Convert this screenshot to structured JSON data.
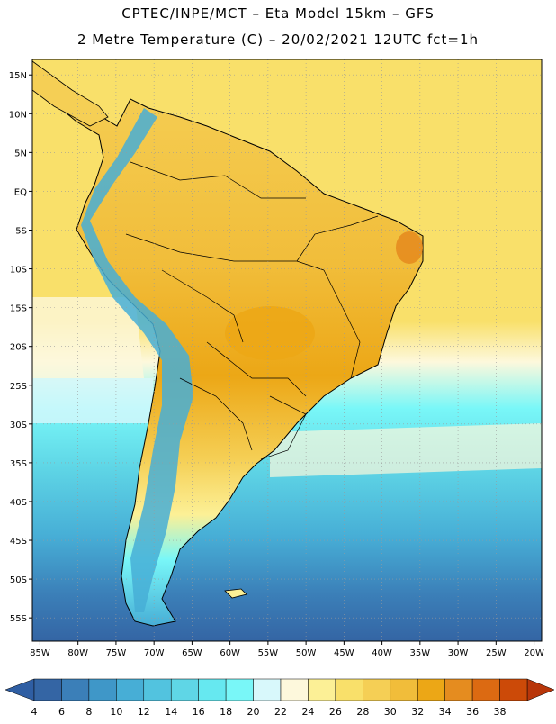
{
  "header": {
    "title_line1": "CPTEC/INPE/MCT –  Eta Model 15km – GFS",
    "title_line2": "2 Metre Temperature (C) – 20/02/2021 12UTC fct=1h"
  },
  "map": {
    "lat_labels": [
      "15N",
      "10N",
      "5N",
      "EQ",
      "5S",
      "10S",
      "15S",
      "20S",
      "25S",
      "30S",
      "35S",
      "40S",
      "45S",
      "50S",
      "55S"
    ],
    "lat_values": [
      15,
      10,
      5,
      0,
      -5,
      -10,
      -15,
      -20,
      -25,
      -30,
      -35,
      -40,
      -45,
      -50,
      -55
    ],
    "lon_labels": [
      "85W",
      "80W",
      "75W",
      "70W",
      "65W",
      "60W",
      "55W",
      "50W",
      "45W",
      "40W",
      "35W",
      "30W",
      "25W",
      "20W"
    ],
    "lon_values": [
      -85,
      -80,
      -75,
      -70,
      -65,
      -60,
      -55,
      -50,
      -45,
      -40,
      -35,
      -30,
      -25,
      -20
    ],
    "lat_range": [
      -58,
      17
    ],
    "lon_range": [
      -86,
      -19
    ]
  },
  "colorbar": {
    "labels": [
      "4",
      "6",
      "8",
      "10",
      "12",
      "14",
      "16",
      "18",
      "20",
      "22",
      "24",
      "26",
      "28",
      "30",
      "32",
      "34",
      "36",
      "38"
    ],
    "colors": [
      "#3465a4",
      "#3b7fb8",
      "#3f97c8",
      "#47aed6",
      "#52c3df",
      "#5fd6e6",
      "#66e8f0",
      "#79f7f8",
      "#d8f8fb",
      "#fdf8dc",
      "#fcf096",
      "#f9e06a",
      "#f5cf55",
      "#f1bd3a",
      "#eca716",
      "#e58c1f",
      "#dc6a12",
      "#cc4a08"
    ],
    "left_arrow_color": "#2f5ea3",
    "right_arrow_color": "#b8360a"
  },
  "palette": {
    "ocean_north": "#f8d96e",
    "ocean_south_mid": "#5fd6e6",
    "ocean_south_deep": "#3f97c8",
    "land_warm": "#f1bd3a",
    "land_hot": "#eca716",
    "andes_cold": "#47aed6",
    "border": "#000000",
    "grid": "#9a9a9a"
  }
}
